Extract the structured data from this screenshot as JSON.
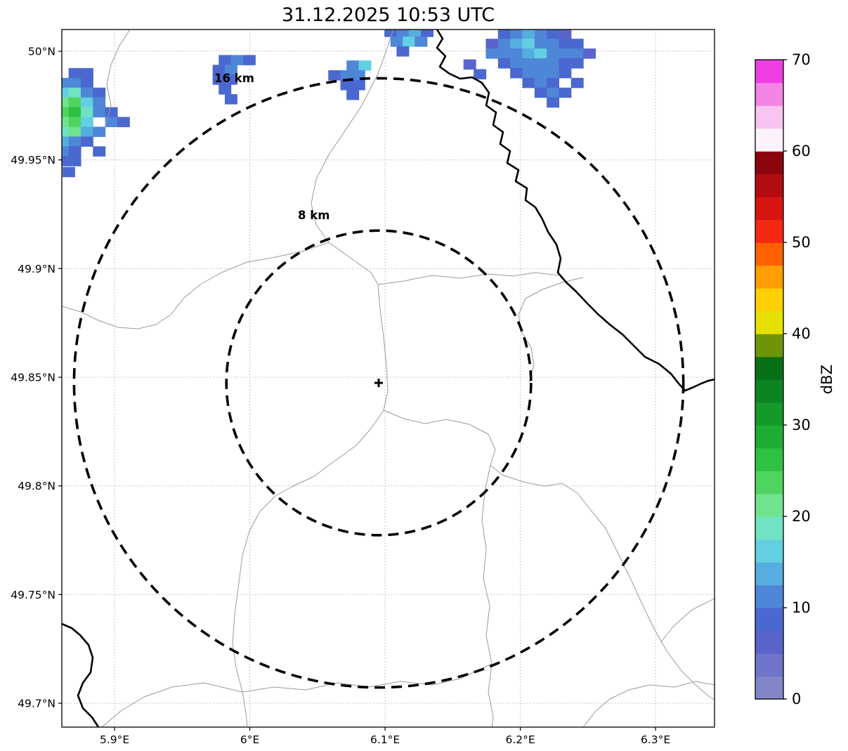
{
  "title": "31.12.2025 10:53 UTC",
  "axes": {
    "x_ticks": [
      {
        "value": 5.9,
        "label": "5.9°E"
      },
      {
        "value": 6.0,
        "label": "6°E"
      },
      {
        "value": 6.1,
        "label": "6.1°E"
      },
      {
        "value": 6.2,
        "label": "6.2°E"
      },
      {
        "value": 6.3,
        "label": "6.3°E"
      }
    ],
    "y_ticks": [
      {
        "value": 50.0,
        "label": "50°N"
      },
      {
        "value": 49.95,
        "label": "49.95°N"
      },
      {
        "value": 49.9,
        "label": "49.9°N"
      },
      {
        "value": 49.85,
        "label": "49.85°N"
      },
      {
        "value": 49.8,
        "label": "49.8°N"
      },
      {
        "value": 49.75,
        "label": "49.75°N"
      },
      {
        "value": 49.7,
        "label": "49.7°N"
      }
    ],
    "lon_range": [
      5.861,
      6.3436
    ],
    "lat_range": [
      49.689,
      50.01
    ]
  },
  "range_rings": [
    {
      "radius_km": 16,
      "label": "16 km"
    },
    {
      "radius_km": 8,
      "label": "8 km"
    }
  ],
  "radar_site": {
    "lon": 6.0953,
    "lat": 49.8474,
    "marker": "+"
  },
  "colorbar": {
    "label": "dBZ",
    "min": 0,
    "max": 70,
    "step_dbz": 2.5,
    "tick_values": [
      0,
      10,
      20,
      30,
      40,
      50,
      60,
      70
    ],
    "colors": [
      "#8286c9",
      "#6f75c9",
      "#5a64cb",
      "#4a68d0",
      "#4e86d8",
      "#55aedf",
      "#63cfe3",
      "#6fe3c4",
      "#70e38e",
      "#4fd55f",
      "#2fc143",
      "#1ead33",
      "#149a29",
      "#0c8520",
      "#077017",
      "#6e9509",
      "#e6e000",
      "#ffcf00",
      "#ff9e00",
      "#ff6000",
      "#f52813",
      "#d81511",
      "#b30c11",
      "#8c040e",
      "#fdf2fb",
      "#f9c4ef",
      "#f383e4",
      "#ef3fe3"
    ]
  },
  "chart_data": {
    "type": "heatmap",
    "title": "31.12.2025 10:53 UTC",
    "units": "dBZ",
    "x_axis": "longitude_deg_E",
    "y_axis": "latitude_deg_N",
    "xlim": [
      5.861,
      6.3436
    ],
    "ylim": [
      49.689,
      50.01
    ],
    "legend_position": "right-colorbar",
    "grid": true,
    "cell_size_deg": {
      "lon": 0.009,
      "lat": 0.0045
    },
    "cells": [
      [
        5.8705,
        49.99,
        8
      ],
      [
        5.8795,
        49.99,
        8
      ],
      [
        5.8615,
        49.9855,
        10
      ],
      [
        5.8705,
        49.9855,
        12
      ],
      [
        5.8795,
        49.9855,
        8
      ],
      [
        5.8615,
        49.981,
        15
      ],
      [
        5.8705,
        49.981,
        18
      ],
      [
        5.8795,
        49.981,
        12
      ],
      [
        5.8885,
        49.981,
        8
      ],
      [
        5.8615,
        49.9765,
        20
      ],
      [
        5.8705,
        49.9765,
        23
      ],
      [
        5.8795,
        49.9765,
        15
      ],
      [
        5.8885,
        49.9765,
        10
      ],
      [
        5.8615,
        49.972,
        23
      ],
      [
        5.8705,
        49.972,
        26
      ],
      [
        5.8795,
        49.972,
        18
      ],
      [
        5.8885,
        49.972,
        12
      ],
      [
        5.8975,
        49.972,
        8
      ],
      [
        5.8615,
        49.9675,
        21
      ],
      [
        5.8705,
        49.9675,
        23
      ],
      [
        5.8795,
        49.9675,
        15
      ],
      [
        5.8975,
        49.9675,
        12
      ],
      [
        5.9065,
        49.9675,
        9
      ],
      [
        5.8615,
        49.963,
        18
      ],
      [
        5.8705,
        49.963,
        20
      ],
      [
        5.8795,
        49.963,
        13
      ],
      [
        5.8885,
        49.963,
        10
      ],
      [
        5.8615,
        49.9585,
        14
      ],
      [
        5.8705,
        49.9585,
        12
      ],
      [
        5.8795,
        49.9585,
        9
      ],
      [
        5.8615,
        49.954,
        12
      ],
      [
        5.8705,
        49.954,
        9
      ],
      [
        5.8885,
        49.954,
        8
      ],
      [
        5.8615,
        49.9495,
        9
      ],
      [
        5.8705,
        49.9495,
        8
      ],
      [
        5.866,
        49.9445,
        8
      ],
      [
        5.9815,
        49.996,
        8
      ],
      [
        5.9905,
        49.996,
        10
      ],
      [
        5.9995,
        49.996,
        8
      ],
      [
        5.977,
        49.9915,
        9
      ],
      [
        5.986,
        49.9915,
        10
      ],
      [
        5.977,
        49.987,
        8
      ],
      [
        5.986,
        49.987,
        9
      ],
      [
        5.9815,
        49.9825,
        8
      ],
      [
        5.986,
        49.978,
        8
      ],
      [
        6.076,
        49.9935,
        12
      ],
      [
        6.085,
        49.9935,
        17
      ],
      [
        6.0625,
        49.989,
        8
      ],
      [
        6.0715,
        49.989,
        10
      ],
      [
        6.0805,
        49.989,
        12
      ],
      [
        6.0715,
        49.9845,
        8
      ],
      [
        6.0805,
        49.9845,
        9
      ],
      [
        6.076,
        49.98,
        8
      ],
      [
        6.104,
        50.009,
        8
      ],
      [
        6.113,
        50.009,
        10
      ],
      [
        6.122,
        50.009,
        13
      ],
      [
        6.131,
        50.009,
        8
      ],
      [
        6.1085,
        50.0045,
        10
      ],
      [
        6.1175,
        50.0045,
        15
      ],
      [
        6.1265,
        50.0045,
        10
      ],
      [
        6.113,
        50.0,
        8
      ],
      [
        6.188,
        50.008,
        8
      ],
      [
        6.197,
        50.008,
        10
      ],
      [
        6.206,
        50.008,
        13
      ],
      [
        6.215,
        50.008,
        10
      ],
      [
        6.224,
        50.008,
        9
      ],
      [
        6.233,
        50.008,
        5
      ],
      [
        6.179,
        50.0035,
        5
      ],
      [
        6.188,
        50.0035,
        10
      ],
      [
        6.197,
        50.0035,
        13
      ],
      [
        6.206,
        50.0035,
        15
      ],
      [
        6.215,
        50.0035,
        12
      ],
      [
        6.224,
        50.0035,
        10
      ],
      [
        6.233,
        50.0035,
        9
      ],
      [
        6.242,
        50.0035,
        8
      ],
      [
        6.179,
        49.999,
        10
      ],
      [
        6.188,
        49.999,
        12
      ],
      [
        6.197,
        49.999,
        10
      ],
      [
        6.206,
        49.999,
        13
      ],
      [
        6.215,
        49.999,
        15
      ],
      [
        6.224,
        49.999,
        12
      ],
      [
        6.233,
        49.999,
        10
      ],
      [
        6.242,
        49.999,
        10
      ],
      [
        6.251,
        49.999,
        5
      ],
      [
        6.188,
        49.9945,
        8
      ],
      [
        6.197,
        49.9945,
        10
      ],
      [
        6.206,
        49.9945,
        12
      ],
      [
        6.215,
        49.9945,
        10
      ],
      [
        6.224,
        49.9945,
        12
      ],
      [
        6.233,
        49.9945,
        8
      ],
      [
        6.242,
        49.9945,
        9
      ],
      [
        6.197,
        49.99,
        8
      ],
      [
        6.206,
        49.99,
        10
      ],
      [
        6.215,
        49.99,
        12
      ],
      [
        6.224,
        49.99,
        10
      ],
      [
        6.233,
        49.99,
        8
      ],
      [
        6.206,
        49.9855,
        8
      ],
      [
        6.215,
        49.9855,
        10
      ],
      [
        6.224,
        49.9855,
        8
      ],
      [
        6.242,
        49.9855,
        8
      ],
      [
        6.215,
        49.981,
        8
      ],
      [
        6.224,
        49.981,
        10
      ],
      [
        6.233,
        49.981,
        8
      ],
      [
        6.224,
        49.9765,
        8
      ],
      [
        6.17,
        49.9895,
        8
      ],
      [
        6.1625,
        49.994,
        5
      ]
    ]
  }
}
